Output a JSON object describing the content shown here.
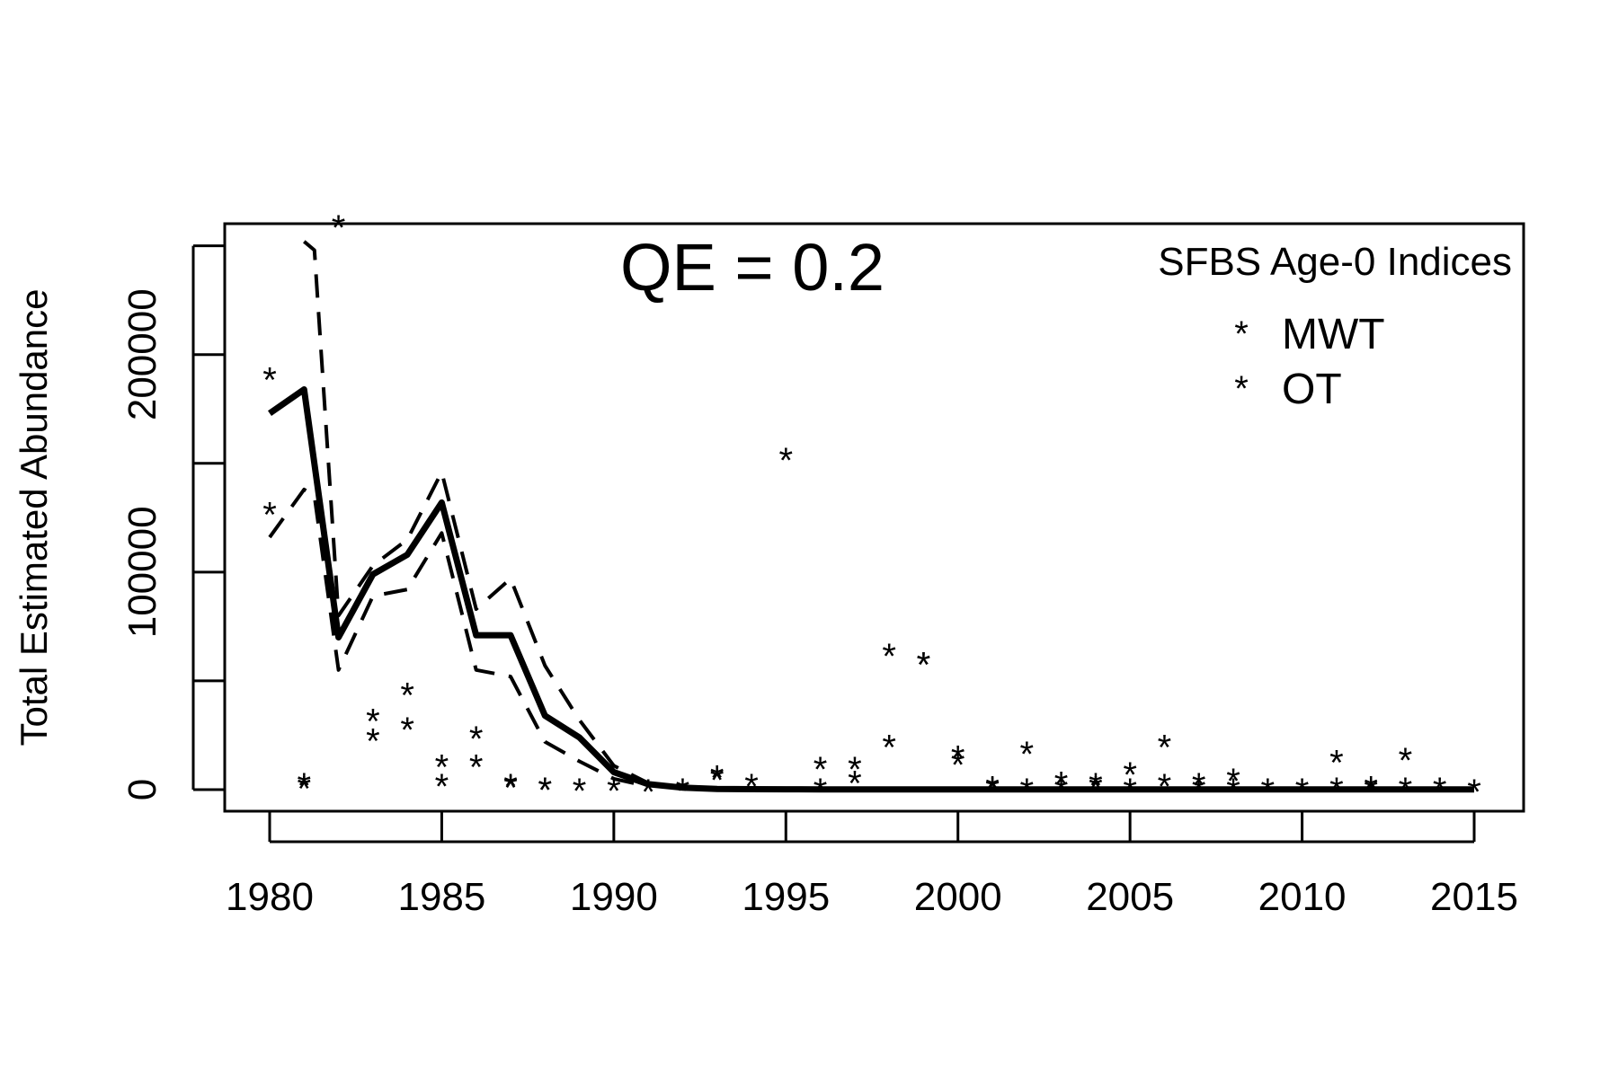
{
  "chart_data": {
    "type": "line",
    "annotation": "QE = 0.2",
    "ylabel": "Total Estimated Abundance",
    "xlabel": "",
    "xlim": [
      1978.6,
      2016.4
    ],
    "ylim": [
      -10000,
      260000
    ],
    "x_ticks": [
      1980,
      1985,
      1990,
      1995,
      2000,
      2005,
      2010,
      2015
    ],
    "y_ticks": [
      0,
      50000,
      100000,
      150000,
      200000,
      250000
    ],
    "y_tick_labels": [
      "0",
      "",
      "100000",
      "",
      "200000",
      ""
    ],
    "grid": false,
    "legend": {
      "position": "top-right",
      "title": "SFBS Age-0 Indices",
      "entries": [
        {
          "label": "MWT",
          "marker": "*",
          "color": "#b3b3b3"
        },
        {
          "label": "OT",
          "marker": "*",
          "color": "#add8e6"
        }
      ]
    },
    "lines": [
      {
        "role": "estimate",
        "style": "solid",
        "color": "#000000",
        "x": [
          1980,
          1981,
          1982,
          1983,
          1984,
          1985,
          1986,
          1987,
          1988,
          1989,
          1990,
          1991,
          1992,
          1993,
          1994,
          1995,
          1996,
          1997,
          1998,
          1999,
          2000,
          2001,
          2002,
          2003,
          2004,
          2005,
          2006,
          2007,
          2008,
          2009,
          2010,
          2011,
          2012,
          2013,
          2014,
          2015
        ],
        "y": [
          173000,
          184000,
          70000,
          99000,
          108000,
          132000,
          71000,
          71000,
          34000,
          24000,
          8000,
          2500,
          900,
          300,
          200,
          150,
          100,
          100,
          100,
          100,
          100,
          100,
          100,
          100,
          100,
          100,
          100,
          100,
          100,
          100,
          100,
          100,
          100,
          100,
          100,
          100
        ]
      },
      {
        "role": "upper bound",
        "style": "dashed",
        "color": "#000000",
        "x": [
          1981,
          1981.3,
          1982,
          1983,
          1984,
          1985,
          1986,
          1987,
          1988,
          1989,
          1990,
          1991
        ],
        "y": [
          252000,
          248000,
          80000,
          103000,
          115000,
          146000,
          83000,
          97000,
          57000,
          32000,
          11000,
          3000
        ]
      },
      {
        "role": "lower bound",
        "style": "dashed",
        "color": "#000000",
        "x": [
          1980,
          1981,
          1981.3,
          1982,
          1983,
          1984,
          1985,
          1986,
          1987,
          1988,
          1989,
          1990,
          1991
        ],
        "y": [
          116000,
          138000,
          135000,
          55000,
          89000,
          92000,
          118000,
          55000,
          52000,
          22000,
          13000,
          5000,
          1500
        ]
      }
    ],
    "series": [
      {
        "name": "MWT",
        "marker": "*",
        "color": "#b3b3b3",
        "x": [
          1980,
          1981,
          1983,
          1984,
          1985,
          1986,
          1987,
          1988,
          1993,
          1996,
          1997,
          1998,
          1999,
          2000,
          2001,
          2002,
          2003,
          2004,
          2005,
          2006,
          2007,
          2008,
          2011,
          2012,
          2013
        ],
        "y": [
          189000,
          1000,
          32000,
          28000,
          2000,
          24000,
          1500,
          500,
          5000,
          0,
          3500,
          62000,
          58000,
          12000,
          500,
          0,
          0,
          1000,
          0,
          2000,
          0,
          0,
          500,
          0,
          500
        ]
      },
      {
        "name": "OT",
        "marker": "*",
        "color": "#add8e6",
        "x": [
          1980,
          1981,
          1982,
          1983,
          1984,
          1985,
          1986,
          1987,
          1988,
          1989,
          1990,
          1991,
          1992,
          1993,
          1994,
          1995,
          1996,
          1997,
          1998,
          1999,
          2000,
          2001,
          2002,
          2003,
          2004,
          2005,
          2006,
          2007,
          2008,
          2009,
          2010,
          2011,
          2012,
          2013,
          2014,
          2015
        ],
        "y": [
          127000,
          2500,
          259000,
          23000,
          44000,
          11000,
          11000,
          2000,
          500,
          0,
          0,
          -500,
          0,
          6000,
          2000,
          152000,
          10000,
          10000,
          20000,
          58000,
          15000,
          1000,
          17000,
          3000,
          2500,
          7500,
          20000,
          2500,
          4500,
          0,
          0,
          13000,
          1000,
          14000,
          500,
          -500
        ]
      }
    ]
  }
}
